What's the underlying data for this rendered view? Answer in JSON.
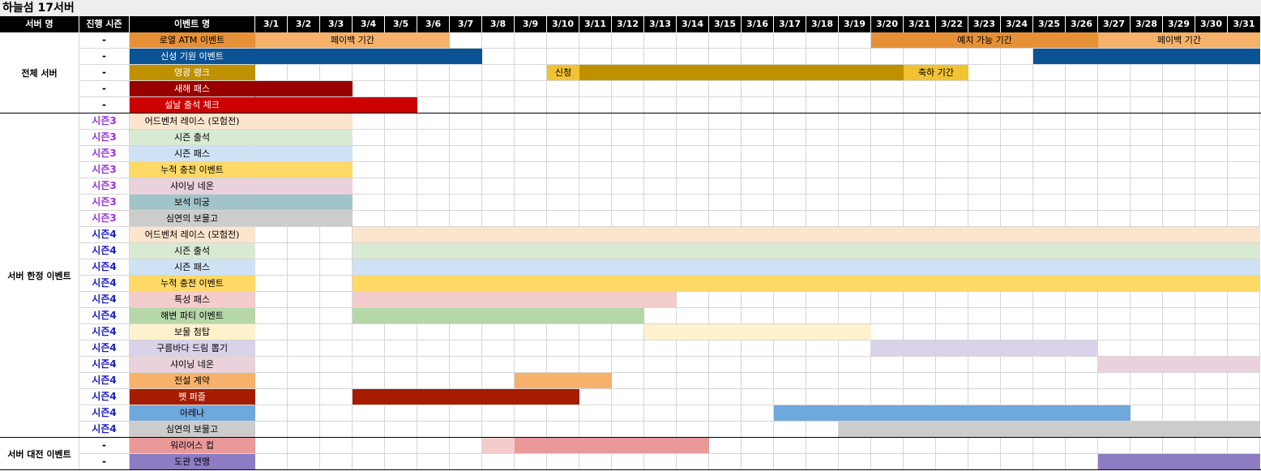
{
  "title": "하늘섬 17서버",
  "headers": {
    "server": "서버 명",
    "season": "진행 시즌",
    "event": "이벤트 명"
  },
  "days": [
    "3/1",
    "3/2",
    "3/3",
    "3/4",
    "3/5",
    "3/6",
    "3/7",
    "3/8",
    "3/9",
    "3/10",
    "3/11",
    "3/12",
    "3/13",
    "3/14",
    "3/15",
    "3/16",
    "3/17",
    "3/18",
    "3/19",
    "3/20",
    "3/21",
    "3/22",
    "3/23",
    "3/24",
    "3/25",
    "3/26",
    "3/27",
    "3/28",
    "3/29",
    "3/30",
    "3/31"
  ],
  "groups": [
    {
      "label": "전체 서버",
      "rows": 5
    },
    {
      "label": "서버 한정 이벤트",
      "rows": 20
    },
    {
      "label": "서버 대전 이벤트",
      "rows": 2
    }
  ],
  "season_colors": {
    "시즌3": "#9b30d9",
    "시즌4": "#1c1cc4",
    "-": "#000000"
  },
  "rows": [
    {
      "season": "-",
      "name": "로열 ATM 이벤트",
      "color": "#e69138",
      "text": "#000",
      "bars": [
        {
          "s": 1,
          "e": 6,
          "color": "#f6b26b",
          "label": "페이백 기간"
        },
        {
          "s": 20,
          "e": 26,
          "color": "#e69138",
          "label": "예치 가능 기간"
        },
        {
          "s": 27,
          "e": 31,
          "color": "#f6b26b",
          "label": "페이백 기간"
        }
      ]
    },
    {
      "season": "-",
      "name": "신성 기원 이벤트",
      "color": "#0b5394",
      "text": "#fff",
      "bars": [
        {
          "s": 1,
          "e": 7,
          "color": "#0b5394"
        },
        {
          "s": 25,
          "e": 31,
          "color": "#0b5394"
        }
      ]
    },
    {
      "season": "-",
      "name": "영광 랭크",
      "color": "#bf9000",
      "text": "#fff",
      "bars": [
        {
          "s": 10,
          "e": 10,
          "color": "#f1c232",
          "label": "신청"
        },
        {
          "s": 11,
          "e": 20,
          "color": "#bf9000"
        },
        {
          "s": 21,
          "e": 22,
          "color": "#f1c232",
          "label": "축하 기간"
        }
      ]
    },
    {
      "season": "-",
      "name": "새해 패스",
      "color": "#990000",
      "text": "#fff",
      "bars": [
        {
          "s": 1,
          "e": 3,
          "color": "#990000"
        }
      ]
    },
    {
      "season": "-",
      "name": "설날 출석 체크",
      "color": "#cc0000",
      "text": "#fff",
      "bars": [
        {
          "s": 1,
          "e": 5,
          "color": "#cc0000"
        }
      ]
    },
    {
      "season": "시즌3",
      "name": "어드벤처 레이스 (모험전)",
      "color": "#fce5cd",
      "text": "#000",
      "bars": [
        {
          "s": 1,
          "e": 3,
          "color": "#fce5cd"
        }
      ]
    },
    {
      "season": "시즌3",
      "name": "시즌 출석",
      "color": "#d9ead3",
      "text": "#000",
      "bars": [
        {
          "s": 1,
          "e": 3,
          "color": "#d9ead3"
        }
      ]
    },
    {
      "season": "시즌3",
      "name": "시즌 패스",
      "color": "#cfe2f3",
      "text": "#000",
      "bars": [
        {
          "s": 1,
          "e": 3,
          "color": "#cfe2f3"
        }
      ]
    },
    {
      "season": "시즌3",
      "name": "누적 충전 이벤트",
      "color": "#ffd966",
      "text": "#000",
      "bars": [
        {
          "s": 1,
          "e": 3,
          "color": "#ffd966"
        }
      ]
    },
    {
      "season": "시즌3",
      "name": "샤이닝 네온",
      "color": "#ead1dc",
      "text": "#000",
      "bars": [
        {
          "s": 1,
          "e": 3,
          "color": "#ead1dc"
        }
      ]
    },
    {
      "season": "시즌3",
      "name": "보석 미궁",
      "color": "#a2c4c9",
      "text": "#000",
      "bars": [
        {
          "s": 1,
          "e": 3,
          "color": "#a2c4c9"
        }
      ]
    },
    {
      "season": "시즌3",
      "name": "심연의 보물고",
      "color": "#cccccc",
      "text": "#000",
      "bars": [
        {
          "s": 1,
          "e": 3,
          "color": "#cccccc"
        }
      ]
    },
    {
      "season": "시즌4",
      "name": "어드벤처 레이스 (모험전)",
      "color": "#fce5cd",
      "text": "#000",
      "bars": [
        {
          "s": 4,
          "e": 31,
          "color": "#fce5cd"
        }
      ]
    },
    {
      "season": "시즌4",
      "name": "시즌 출석",
      "color": "#d9ead3",
      "text": "#000",
      "bars": [
        {
          "s": 4,
          "e": 31,
          "color": "#d9ead3"
        }
      ]
    },
    {
      "season": "시즌4",
      "name": "시즌 패스",
      "color": "#cfe2f3",
      "text": "#000",
      "bars": [
        {
          "s": 4,
          "e": 31,
          "color": "#cfe2f3"
        }
      ]
    },
    {
      "season": "시즌4",
      "name": "누적 충전 이벤트",
      "color": "#ffd966",
      "text": "#000",
      "bars": [
        {
          "s": 4,
          "e": 31,
          "color": "#ffd966"
        }
      ]
    },
    {
      "season": "시즌4",
      "name": "특성 패스",
      "color": "#f4cccc",
      "text": "#000",
      "bars": [
        {
          "s": 4,
          "e": 13,
          "color": "#f4cccc"
        }
      ]
    },
    {
      "season": "시즌4",
      "name": "해변 파티 이벤트",
      "color": "#b6d7a8",
      "text": "#000",
      "bars": [
        {
          "s": 4,
          "e": 12,
          "color": "#b6d7a8"
        }
      ]
    },
    {
      "season": "시즌4",
      "name": "보물 첨탑",
      "color": "#fff2cc",
      "text": "#000",
      "bars": [
        {
          "s": 13,
          "e": 19,
          "color": "#fff2cc"
        }
      ]
    },
    {
      "season": "시즌4",
      "name": "구름바다 드림 뽑기",
      "color": "#d9d2e9",
      "text": "#000",
      "bars": [
        {
          "s": 20,
          "e": 26,
          "color": "#d9d2e9"
        }
      ]
    },
    {
      "season": "시즌4",
      "name": "샤이닝 네온",
      "color": "#ead1dc",
      "text": "#000",
      "bars": [
        {
          "s": 27,
          "e": 31,
          "color": "#ead1dc"
        }
      ]
    },
    {
      "season": "시즌4",
      "name": "전설 계약",
      "color": "#f6b26b",
      "text": "#000",
      "bars": [
        {
          "s": 9,
          "e": 11,
          "color": "#f6b26b"
        }
      ]
    },
    {
      "season": "시즌4",
      "name": "펫 퍼즐",
      "color": "#a61c00",
      "text": "#fff",
      "bars": [
        {
          "s": 4,
          "e": 10,
          "color": "#a61c00"
        }
      ]
    },
    {
      "season": "시즌4",
      "name": "아레나",
      "color": "#6fa8dc",
      "text": "#000",
      "bars": [
        {
          "s": 17,
          "e": 27,
          "color": "#6fa8dc"
        }
      ]
    },
    {
      "season": "시즌4",
      "name": "심연의 보물고",
      "color": "#cccccc",
      "text": "#000",
      "bars": [
        {
          "s": 19,
          "e": 31,
          "color": "#cccccc"
        }
      ]
    },
    {
      "season": "-",
      "name": "워리어스 컵",
      "color": "#ea9999",
      "text": "#000",
      "bars": [
        {
          "s": 8,
          "e": 8,
          "color": "#f4cccc"
        },
        {
          "s": 9,
          "e": 14,
          "color": "#ea9999"
        }
      ]
    },
    {
      "season": "-",
      "name": "도관 연맹",
      "color": "#8e7cc3",
      "text": "#000",
      "bars": [
        {
          "s": 27,
          "e": 31,
          "color": "#8e7cc3"
        }
      ]
    }
  ]
}
